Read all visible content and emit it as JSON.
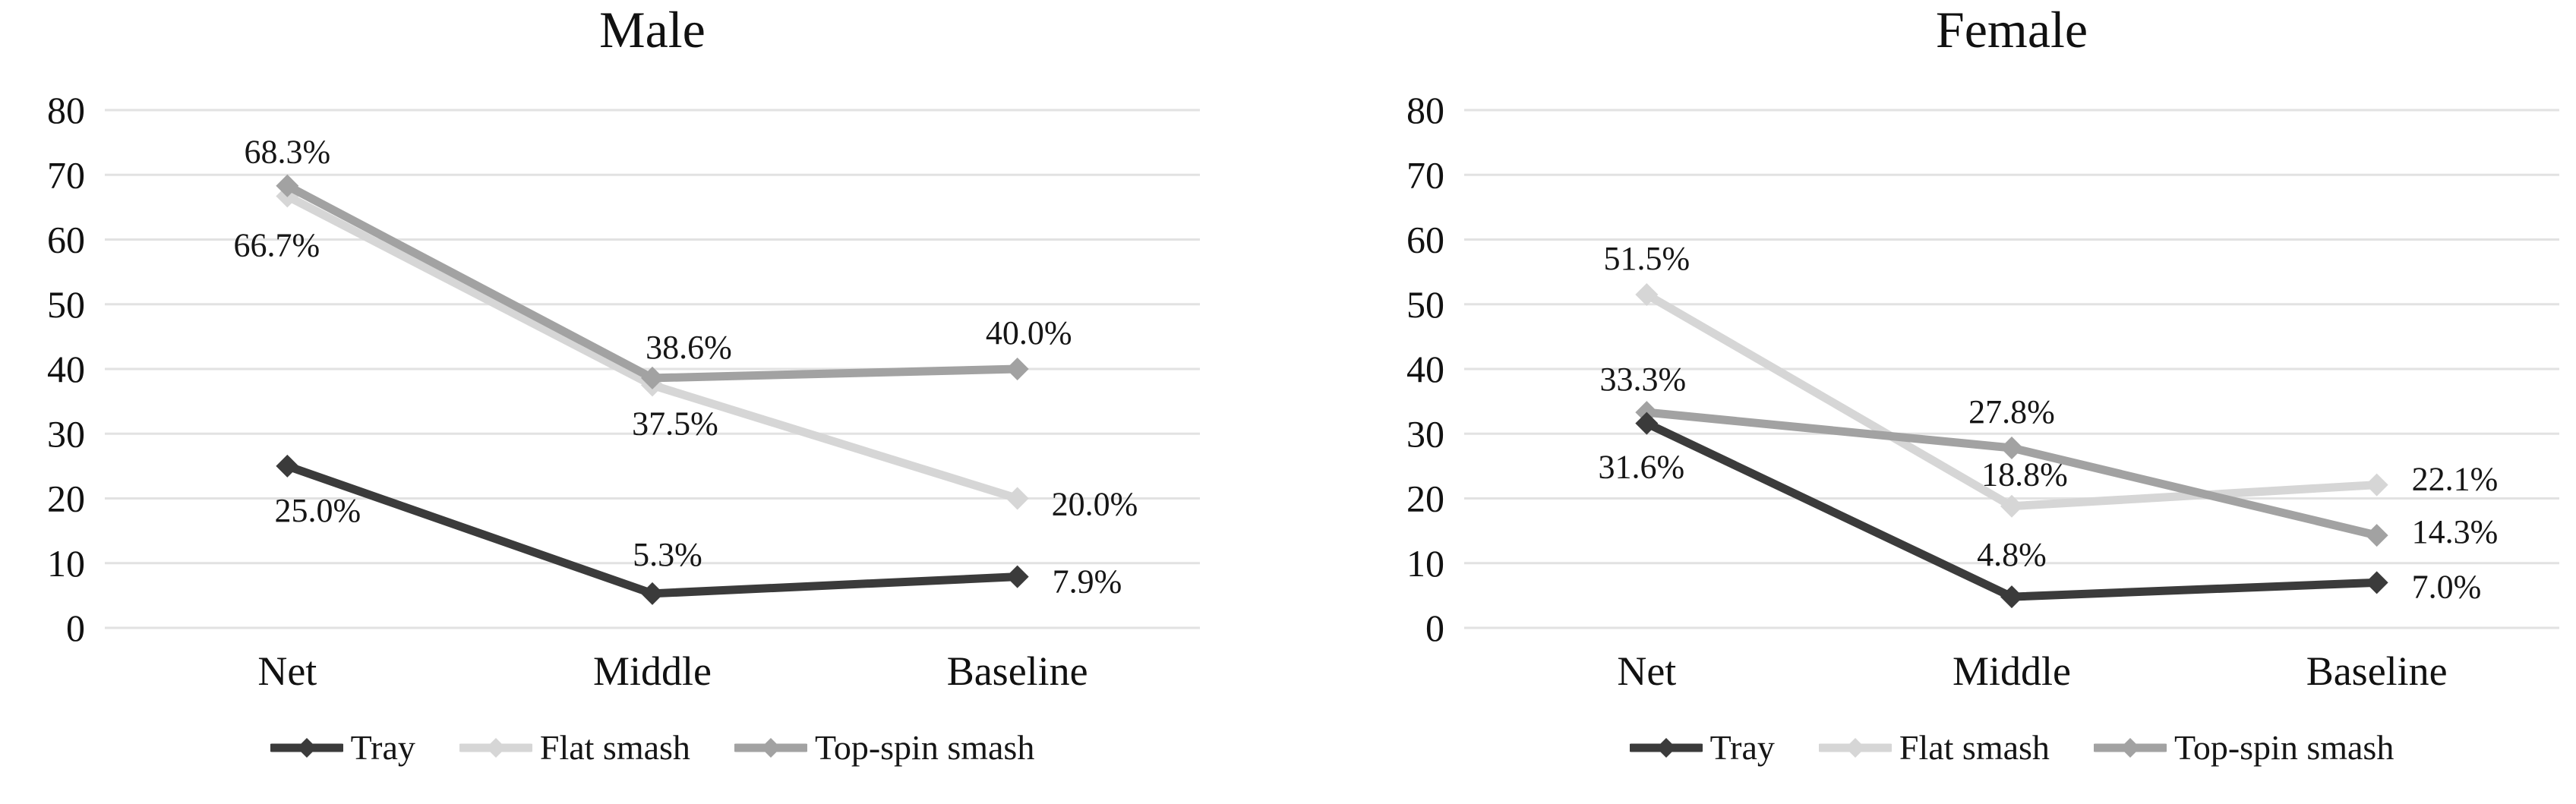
{
  "figure_background": "#ffffff",
  "colors": {
    "grid": "#e2e2e2",
    "text": "#161616",
    "tick_text": "#111111",
    "tray": "#3b3b3b",
    "flat_smash": "#d6d6d6",
    "top_spin_smash": "#a2a2a2"
  },
  "chart_data": [
    {
      "type": "line",
      "title": "Male",
      "categories": [
        "Net",
        "Middle",
        "Baseline"
      ],
      "xlabel": "",
      "ylabel": "",
      "ylim": [
        0,
        80
      ],
      "ytick_step": 10,
      "ytick_labels": [
        "0",
        "10",
        "20",
        "30",
        "40",
        "50",
        "60",
        "70",
        "80"
      ],
      "grid": true,
      "legend_position": "bottom",
      "marker": "diamond",
      "series": [
        {
          "name": "Flat smash",
          "color": "#d6d6d6",
          "values": [
            66.7,
            37.5,
            20.0
          ],
          "points": [
            {
              "value": 66.7,
              "label": "66.7%",
              "dx": -14,
              "dy": 64,
              "anchor": "middle"
            },
            {
              "value": 37.5,
              "label": "37.5%",
              "dx": 30,
              "dy": 50,
              "anchor": "middle"
            },
            {
              "value": 20.0,
              "label": "20.0%",
              "dx": 45,
              "dy": 7,
              "anchor": "start"
            }
          ]
        },
        {
          "name": "Top-spin smash",
          "color": "#a2a2a2",
          "values": [
            68.3,
            38.6,
            40.0
          ],
          "points": [
            {
              "value": 68.3,
              "label": "68.3%",
              "dx": 0,
              "dy": -45,
              "anchor": "middle"
            },
            {
              "value": 38.6,
              "label": "38.6%",
              "dx": 48,
              "dy": -41,
              "anchor": "middle"
            },
            {
              "value": 40.0,
              "label": "40.0%",
              "dx": 15,
              "dy": -48,
              "anchor": "middle"
            }
          ]
        },
        {
          "name": "Tray",
          "color": "#3b3b3b",
          "values": [
            25.0,
            5.3,
            7.9
          ],
          "points": [
            {
              "value": 25.0,
              "label": "25.0%",
              "dx": 40,
              "dy": 58,
              "anchor": "middle"
            },
            {
              "value": 5.3,
              "label": "5.3%",
              "dx": 20,
              "dy": -52,
              "anchor": "middle"
            },
            {
              "value": 7.9,
              "label": "7.9%",
              "dx": 46,
              "dy": 6,
              "anchor": "start"
            }
          ]
        }
      ],
      "legend": [
        "Tray",
        "Flat smash",
        "Top-spin smash"
      ]
    },
    {
      "type": "line",
      "title": "Female",
      "categories": [
        "Net",
        "Middle",
        "Baseline"
      ],
      "xlabel": "",
      "ylabel": "",
      "ylim": [
        0,
        80
      ],
      "ytick_step": 10,
      "ytick_labels": [
        "0",
        "10",
        "20",
        "30",
        "40",
        "50",
        "60",
        "70",
        "80"
      ],
      "grid": true,
      "legend_position": "bottom",
      "marker": "diamond",
      "series": [
        {
          "name": "Flat smash",
          "color": "#d6d6d6",
          "values": [
            51.5,
            18.8,
            22.1
          ],
          "points": [
            {
              "value": 51.5,
              "label": "51.5%",
              "dx": 0,
              "dy": -48,
              "anchor": "middle"
            },
            {
              "value": 18.8,
              "label": "18.8%",
              "dx": 17,
              "dy": -42,
              "anchor": "middle"
            },
            {
              "value": 22.1,
              "label": "22.1%",
              "dx": 46,
              "dy": -8,
              "anchor": "start"
            }
          ]
        },
        {
          "name": "Top-spin smash",
          "color": "#a2a2a2",
          "values": [
            33.3,
            27.8,
            14.3
          ],
          "points": [
            {
              "value": 33.3,
              "label": "33.3%",
              "dx": -5,
              "dy": -44,
              "anchor": "middle"
            },
            {
              "value": 27.8,
              "label": "27.8%",
              "dx": 0,
              "dy": -48,
              "anchor": "middle"
            },
            {
              "value": 14.3,
              "label": "14.3%",
              "dx": 46,
              "dy": -5,
              "anchor": "start"
            }
          ]
        },
        {
          "name": "Tray",
          "color": "#3b3b3b",
          "values": [
            31.6,
            4.8,
            7.0
          ],
          "points": [
            {
              "value": 31.6,
              "label": "31.6%",
              "dx": -7,
              "dy": 57,
              "anchor": "middle"
            },
            {
              "value": 4.8,
              "label": "4.8%",
              "dx": 0,
              "dy": -56,
              "anchor": "middle"
            },
            {
              "value": 7.0,
              "label": "7.0%",
              "dx": 46,
              "dy": 5,
              "anchor": "start"
            }
          ]
        }
      ],
      "legend": [
        "Tray",
        "Flat smash",
        "Top-spin smash"
      ]
    }
  ]
}
